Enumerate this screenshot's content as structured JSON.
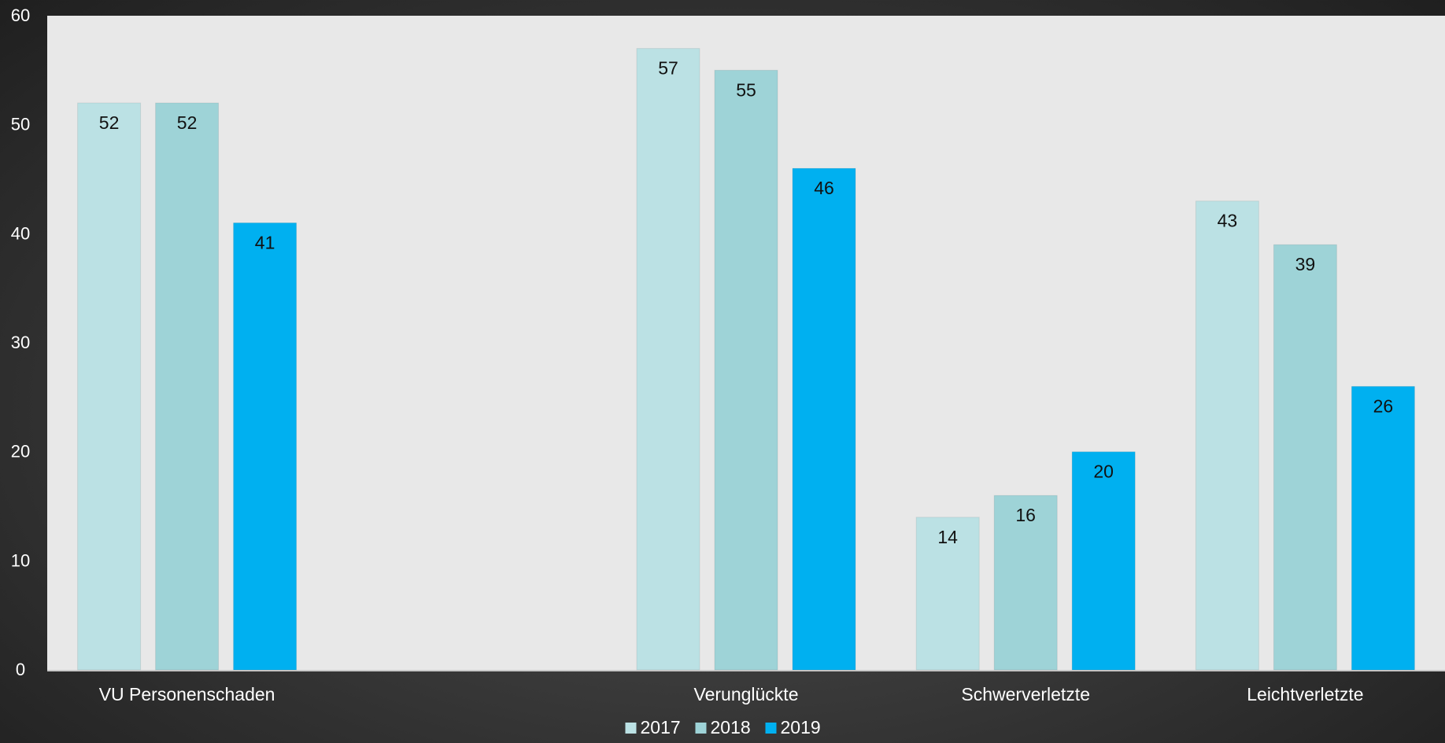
{
  "chart_data": {
    "type": "bar",
    "title": "",
    "xlabel": "",
    "ylabel": "",
    "categories": [
      "VU Personenschaden",
      "",
      "Verunglückte",
      "Schwerverletzte",
      "Leichtverletzte"
    ],
    "series": [
      {
        "name": "2017",
        "color": "#bbe1e4",
        "values": [
          52,
          null,
          57,
          14,
          43
        ]
      },
      {
        "name": "2018",
        "color": "#9ed3d7",
        "values": [
          52,
          null,
          55,
          16,
          39
        ]
      },
      {
        "name": "2019",
        "color": "#00b0f0",
        "values": [
          41,
          null,
          46,
          20,
          26
        ]
      }
    ],
    "ylim": [
      0,
      60
    ],
    "yticks": [
      0,
      10,
      20,
      30,
      40,
      50,
      60
    ],
    "grid": false,
    "data_labels": true,
    "legend_position": "bottom",
    "plot_background": "#e8e8e8"
  }
}
